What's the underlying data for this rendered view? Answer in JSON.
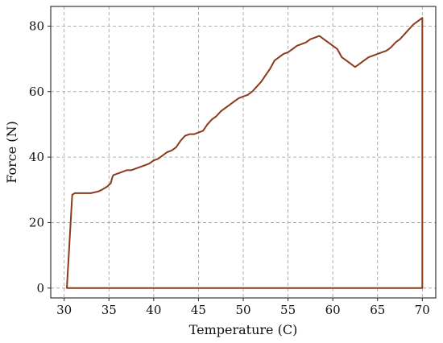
{
  "chart_data": {
    "type": "line",
    "title": "",
    "xlabel": "Temperature (C)",
    "ylabel": "Force (N)",
    "xlim": [
      28.5,
      71.5
    ],
    "ylim": [
      -3,
      86
    ],
    "xticks": [
      30,
      35,
      40,
      45,
      50,
      55,
      60,
      65,
      70
    ],
    "yticks": [
      0,
      20,
      40,
      60,
      80
    ],
    "grid": true,
    "legend": "none",
    "series": [
      {
        "color": "#8b3a1a",
        "x": [
          30.3,
          30.9,
          31.2,
          32,
          33,
          33.8,
          34.2,
          34.8,
          35.2,
          35.4,
          35.5,
          36,
          36.5,
          37,
          37.5,
          38,
          38.5,
          39,
          39.5,
          40,
          40.5,
          41,
          41.5,
          42,
          42.5,
          43,
          43.5,
          44,
          44.5,
          45,
          45.5,
          46,
          46.5,
          47,
          47.5,
          48,
          48.5,
          49,
          49.5,
          50,
          50.5,
          51,
          51.5,
          52,
          52.5,
          53,
          53.5,
          54,
          54.5,
          55,
          55.5,
          56,
          56.5,
          57,
          57.5,
          58,
          58.5,
          59,
          59.5,
          60,
          60.5,
          61,
          61.5,
          62,
          62.5,
          63,
          63.5,
          64,
          64.5,
          65,
          65.5,
          66,
          66.5,
          67,
          67.5,
          68,
          68.5,
          69,
          69.5,
          70,
          70,
          69.8,
          30.3
        ],
        "y": [
          0,
          28.5,
          29,
          29,
          29,
          29.5,
          30,
          31,
          32,
          34,
          34.5,
          35,
          35.5,
          36,
          36,
          36.5,
          37,
          37.5,
          38,
          39,
          39.5,
          40.5,
          41.5,
          42,
          43,
          45,
          46.5,
          47,
          47,
          47.5,
          48,
          50,
          51.5,
          52.5,
          54,
          55,
          56,
          57,
          58,
          58.5,
          59,
          60,
          61.5,
          63,
          65,
          67,
          69.5,
          70.5,
          71.5,
          72,
          73,
          74,
          74.5,
          75,
          76,
          76.5,
          77,
          76,
          75,
          74,
          73,
          70.5,
          69.5,
          68.5,
          67.5,
          68.5,
          69.5,
          70.5,
          71,
          71.5,
          72,
          72.5,
          73.5,
          75,
          76,
          77.5,
          79,
          80.5,
          81.5,
          82.5,
          0,
          0,
          0
        ]
      }
    ]
  }
}
